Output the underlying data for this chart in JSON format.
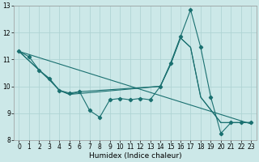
{
  "xlabel": "Humidex (Indice chaleur)",
  "bg_color": "#cce8e8",
  "grid_color": "#b0d4d4",
  "line_color": "#1a7070",
  "xlim": [
    -0.5,
    23.5
  ],
  "ylim": [
    8,
    13
  ],
  "yticks": [
    8,
    9,
    10,
    11,
    12,
    13
  ],
  "xticks": [
    0,
    1,
    2,
    3,
    4,
    5,
    6,
    7,
    8,
    9,
    10,
    11,
    12,
    13,
    14,
    15,
    16,
    17,
    18,
    19,
    20,
    21,
    22,
    23
  ],
  "series": [
    {
      "x": [
        0,
        1,
        2,
        3,
        4,
        5,
        6,
        7,
        8,
        9,
        10,
        11,
        12,
        13,
        14,
        15,
        16,
        17,
        18,
        19,
        20,
        21,
        22,
        23
      ],
      "y": [
        11.3,
        11.1,
        10.6,
        10.3,
        9.85,
        9.75,
        9.8,
        9.1,
        8.85,
        9.5,
        9.55,
        9.5,
        9.55,
        9.5,
        10.0,
        10.85,
        11.85,
        12.85,
        11.45,
        9.6,
        8.25,
        8.65,
        8.65,
        8.65
      ],
      "has_markers": true
    },
    {
      "x": [
        0,
        2,
        3,
        4,
        5,
        14,
        15,
        16,
        17,
        18,
        20,
        21,
        22,
        23
      ],
      "y": [
        11.3,
        10.6,
        10.25,
        9.85,
        9.7,
        10.0,
        10.8,
        11.8,
        11.45,
        9.6,
        8.65,
        8.65,
        8.65,
        8.65
      ],
      "has_markers": false
    },
    {
      "x": [
        0,
        2,
        3,
        4,
        5,
        6,
        14,
        15,
        16,
        17,
        18,
        20,
        21,
        22,
        23
      ],
      "y": [
        11.3,
        10.6,
        10.25,
        9.85,
        9.7,
        9.8,
        10.0,
        10.8,
        11.8,
        11.45,
        9.6,
        8.65,
        8.65,
        8.65,
        8.65
      ],
      "has_markers": false
    },
    {
      "x": [
        0,
        23
      ],
      "y": [
        11.3,
        8.6
      ],
      "has_markers": false
    }
  ]
}
